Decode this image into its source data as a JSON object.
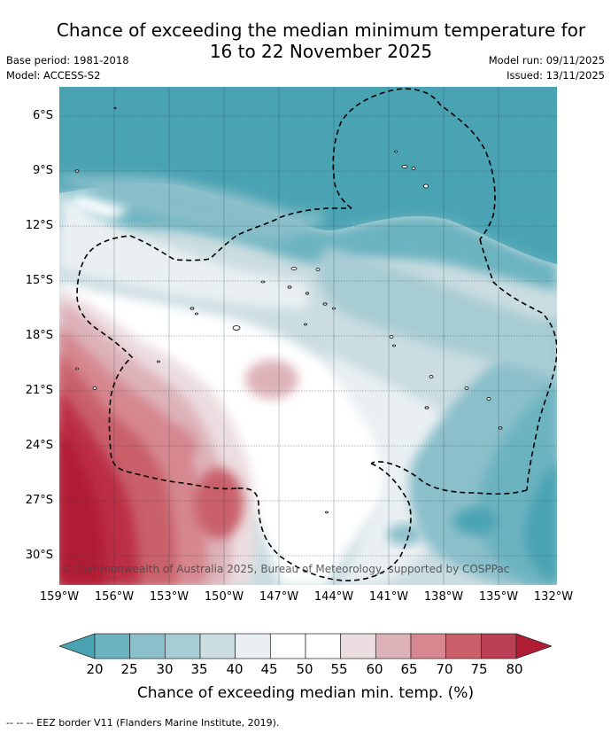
{
  "header": {
    "title_line1": "Chance of exceeding the median minimum temperature for",
    "title_line2": "16 to 22 November 2025",
    "base_period": "Base period: 1981-2018",
    "model": "Model: ACCESS-S2",
    "model_run": "Model run: 09/11/2025",
    "issued": "Issued: 13/11/2025"
  },
  "map": {
    "latitude_labels": [
      "6°S",
      "9°S",
      "12°S",
      "15°S",
      "18°S",
      "21°S",
      "24°S",
      "27°S",
      "30°S"
    ],
    "longitude_labels": [
      "159°W",
      "156°W",
      "153°W",
      "150°W",
      "147°W",
      "144°W",
      "141°W",
      "138°W",
      "135°W",
      "132°W"
    ],
    "copyright": "© Commonwealth of Australia 2025, Bureau of Meteorology, supported by COSPPac",
    "colors": {
      "c20": "#4aa3b3",
      "c25": "#6cb3c0",
      "c30": "#8bbfca",
      "c35": "#a8ccd3",
      "c40": "#cbdde1",
      "c45": "#eaf0f2",
      "c50": "#ffffff",
      "c55": "#f7f3f4",
      "c60": "#ecdde0",
      "c65": "#ddb2b9",
      "c70": "#d6878f",
      "c75": "#c9606a",
      "c80": "#bc2f45",
      "c85": "#b11c35"
    }
  },
  "colorbar": {
    "ticks": [
      "20",
      "25",
      "30",
      "35",
      "40",
      "45",
      "50",
      "55",
      "60",
      "65",
      "70",
      "75",
      "80"
    ],
    "label": "Chance of exceeding median min. temp. (%)",
    "segment_colors": [
      "#4aa3b3",
      "#6cb3c0",
      "#8bbfca",
      "#a8ccd3",
      "#cbdde1",
      "#eaf0f2",
      "#ffffff",
      "#ffffff",
      "#ecdde0",
      "#ddb2b9",
      "#d6878f",
      "#c9606a",
      "#bc3f55",
      "#b11c35"
    ]
  },
  "footer": {
    "eez_note": "--  --  -- EEZ border V11 (Flanders Marine Institute, 2019)."
  }
}
